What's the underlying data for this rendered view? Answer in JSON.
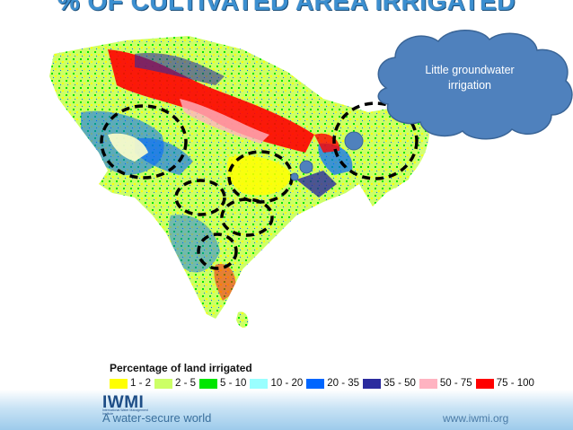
{
  "slide": {
    "title": "% OF CULTIVATED AREA IRRIGATED",
    "callout": "Little groundwater irrigation",
    "colors": {
      "title": "#3c8fd0",
      "cloud_fill": "#4f81bd",
      "cloud_stroke": "#3a6597"
    }
  },
  "legend": {
    "title": "Percentage of land irrigated",
    "items": [
      {
        "label": "1 - 2",
        "color": "#ffff00"
      },
      {
        "label": "2 - 5",
        "color": "#ccff66"
      },
      {
        "label": "5 - 10",
        "color": "#00e600"
      },
      {
        "label": "10 - 20",
        "color": "#99ffff"
      },
      {
        "label": "20 - 35",
        "color": "#0066ff"
      },
      {
        "label": "35 - 50",
        "color": "#2b2b9e"
      },
      {
        "label": "50 - 75",
        "color": "#ffb3c1"
      },
      {
        "label": "75 - 100",
        "color": "#ff0000"
      }
    ]
  },
  "map": {
    "region": "India",
    "marked_areas": [
      "west-rajasthan",
      "central-madhya-pradesh",
      "vidarbha",
      "chhattisgarh",
      "telangana",
      "northeast-assam"
    ],
    "markers": [
      "orissa-bengal-marker",
      "bengal-marker",
      "northeast-marker"
    ]
  },
  "footer": {
    "logo": "IWMI",
    "logo_sub": "International Water Management Institute",
    "tagline": "A water-secure world",
    "website": "www.iwmi.org"
  }
}
